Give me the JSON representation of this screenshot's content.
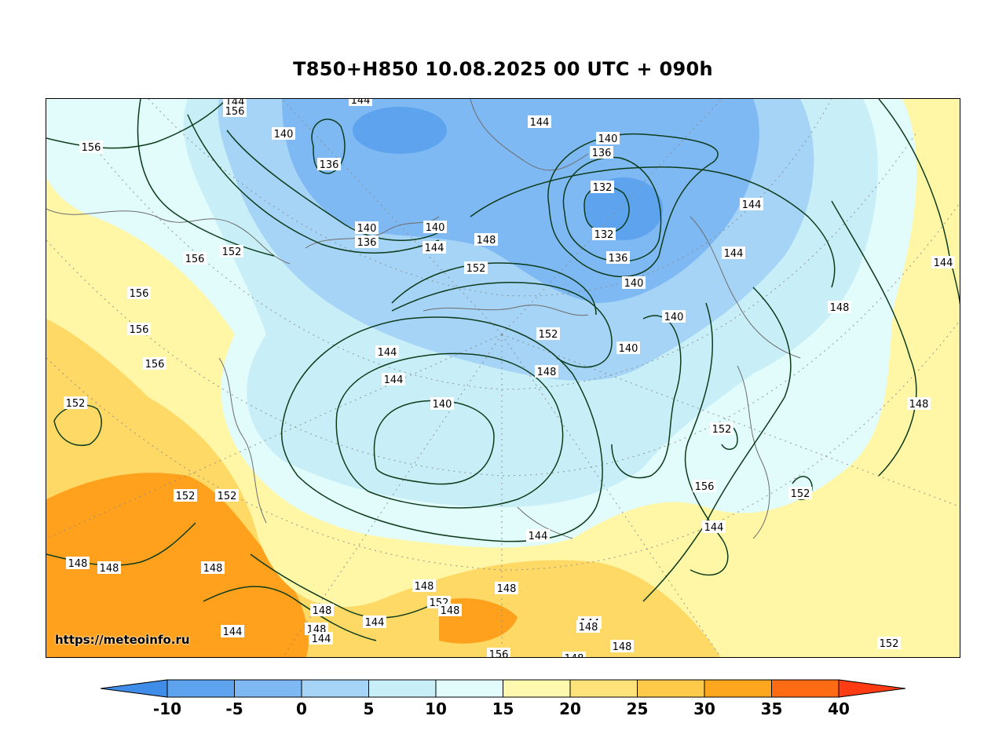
{
  "title": "T850+H850 10.08.2025 00 UTC + 090h",
  "watermark": "https://meteoinfo.ru",
  "colorbar": {
    "ticks": [
      "-10",
      "-5",
      "0",
      "5",
      "10",
      "15",
      "20",
      "25",
      "30",
      "35",
      "40"
    ],
    "colors": [
      "#3f8de8",
      "#5ea3ee",
      "#7fb9f3",
      "#a6d4f7",
      "#c8eff7",
      "#e2fbfb",
      "#fff9b0",
      "#ffe37a",
      "#ffc949",
      "#ffa61f",
      "#ff6b12",
      "#ff3b14"
    ]
  },
  "fill_colors": {
    "land_warm": "#ffd966",
    "land_hot": "#ffa11c",
    "cold_core": "#5ea3ee",
    "cold": "#7fb9f3",
    "cool": "#a6d4f7",
    "mild": "#c8eff7",
    "fresh": "#e2fbfb",
    "yellow": "#fff6a6"
  },
  "contour_labels": [
    {
      "text": "144"
    },
    {
      "text": "144"
    },
    {
      "text": "144"
    },
    {
      "text": "156"
    },
    {
      "text": "140"
    },
    {
      "text": "136"
    },
    {
      "text": "140"
    },
    {
      "text": "136"
    },
    {
      "text": "132"
    },
    {
      "text": "132"
    },
    {
      "text": "144"
    },
    {
      "text": "136"
    },
    {
      "text": "140"
    },
    {
      "text": "140"
    },
    {
      "text": "136"
    },
    {
      "text": "140"
    },
    {
      "text": "144"
    },
    {
      "text": "148"
    },
    {
      "text": "152"
    },
    {
      "text": "156"
    },
    {
      "text": "156"
    },
    {
      "text": "156"
    },
    {
      "text": "156"
    },
    {
      "text": "152"
    },
    {
      "text": "144"
    },
    {
      "text": "156"
    },
    {
      "text": "152"
    },
    {
      "text": "152"
    },
    {
      "text": "148"
    },
    {
      "text": "144"
    },
    {
      "text": "140"
    },
    {
      "text": "140"
    },
    {
      "text": "152"
    },
    {
      "text": "140"
    },
    {
      "text": "144"
    },
    {
      "text": "148"
    },
    {
      "text": "144"
    },
    {
      "text": "148"
    },
    {
      "text": "152"
    },
    {
      "text": "156"
    },
    {
      "text": "144"
    },
    {
      "text": "144"
    },
    {
      "text": "152"
    },
    {
      "text": "152"
    },
    {
      "text": "148"
    },
    {
      "text": "148"
    },
    {
      "text": "148"
    },
    {
      "text": "144"
    },
    {
      "text": "148"
    },
    {
      "text": "152"
    },
    {
      "text": "148"
    },
    {
      "text": "148"
    },
    {
      "text": "144"
    },
    {
      "text": "148"
    },
    {
      "text": "144"
    },
    {
      "text": "148"
    },
    {
      "text": "144"
    },
    {
      "text": "156"
    },
    {
      "text": "148"
    },
    {
      "text": "148"
    },
    {
      "text": "144"
    },
    {
      "text": "148"
    },
    {
      "text": "152"
    }
  ]
}
